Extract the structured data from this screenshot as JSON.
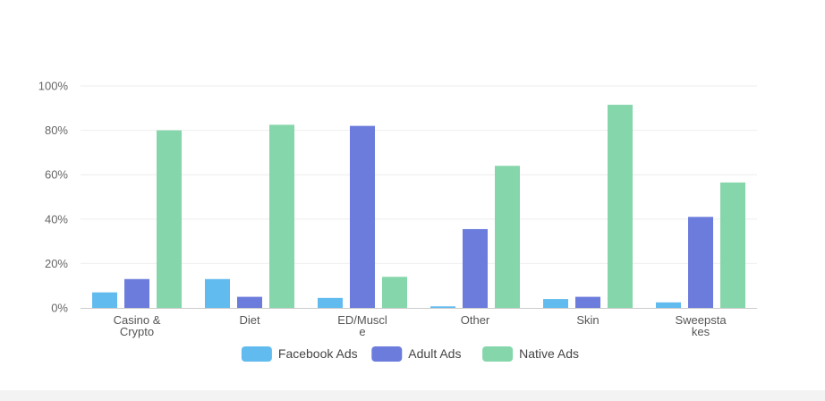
{
  "chart_data": {
    "type": "bar",
    "categories": [
      [
        "Casino &",
        "Crypto"
      ],
      [
        "Diet"
      ],
      [
        "ED/Muscl",
        "e"
      ],
      [
        "Other"
      ],
      [
        "Skin"
      ],
      [
        "Sweepsta",
        "kes"
      ]
    ],
    "series": [
      {
        "name": "Facebook Ads",
        "color": "#62bbef",
        "values": [
          7,
          13,
          4.5,
          0.7,
          4,
          2.5
        ]
      },
      {
        "name": "Adult Ads",
        "color": "#6b7cdc",
        "values": [
          13,
          5,
          82,
          35.5,
          5,
          41
        ]
      },
      {
        "name": "Native Ads",
        "color": "#85d6aa",
        "values": [
          80,
          82.5,
          14,
          64,
          91.5,
          56.5
        ]
      }
    ],
    "ylim": [
      0,
      100
    ],
    "yticks": [
      "0%",
      "20%",
      "40%",
      "60%",
      "80%",
      "100%"
    ],
    "ytick_values": [
      0,
      20,
      40,
      60,
      80,
      100
    ],
    "grid": true,
    "legend_position": "bottom-center",
    "title": "",
    "xlabel": "",
    "ylabel": ""
  }
}
